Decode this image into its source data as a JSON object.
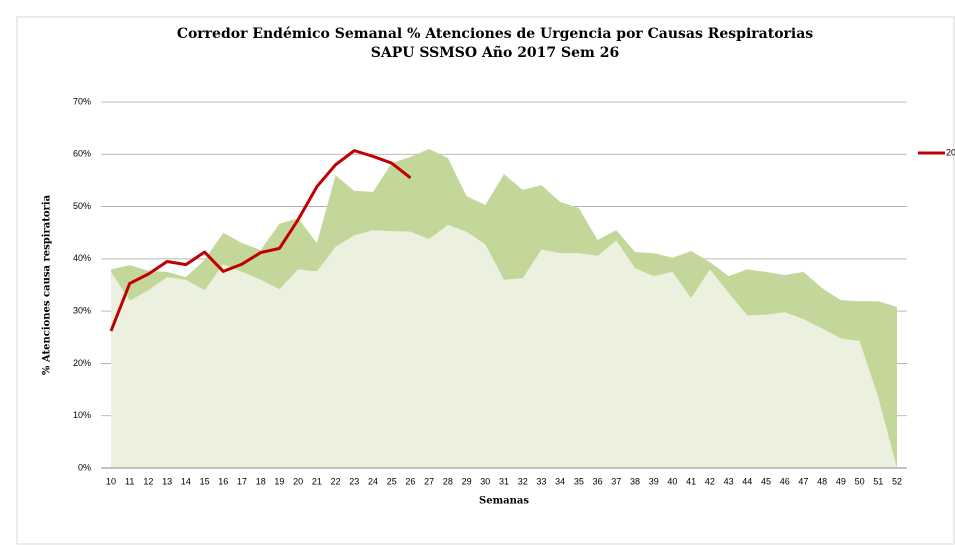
{
  "chart_data": {
    "type": "area",
    "title": "Corredor Endémico Semanal % Atenciones de Urgencia por Causas Respiratorias",
    "subtitle": "SAPU SSMSO Año 2017  Sem 26",
    "x_label": "Semanas",
    "y_label": "% Atenciones causa respiratoria",
    "categories": [
      "10",
      "11",
      "12",
      "13",
      "14",
      "15",
      "16",
      "17",
      "18",
      "19",
      "20",
      "21",
      "22",
      "23",
      "24",
      "25",
      "26",
      "27",
      "28",
      "29",
      "30",
      "31",
      "32",
      "33",
      "34",
      "35",
      "36",
      "37",
      "38",
      "39",
      "40",
      "41",
      "42",
      "43",
      "44",
      "45",
      "46",
      "47",
      "48",
      "49",
      "50",
      "51",
      "52"
    ],
    "series": [
      {
        "color": "#c4d79b",
        "values": [
          38,
          38.8,
          37.7,
          37.5,
          36.5,
          39.8,
          45,
          43,
          41.7,
          46.7,
          47.8,
          43,
          56,
          53,
          52.8,
          58.3,
          59.5,
          61,
          59.3,
          52,
          50.3,
          56.2,
          53.2,
          54.1,
          50.9,
          49.7,
          43.6,
          45.5,
          41.3,
          41.1,
          40.2,
          41.5,
          39.4,
          36.7,
          38,
          37.5,
          36.9,
          37.5,
          34.4,
          32.1,
          31.9,
          31.9,
          30.8
        ]
      },
      {
        "color": "#ebf1de",
        "values": [
          37.5,
          32,
          34,
          36.5,
          36,
          34,
          39,
          37.5,
          36,
          34.2,
          38,
          37.6,
          42.3,
          44.5,
          45.5,
          45.3,
          45.2,
          43.8,
          46.5,
          45.2,
          42.8,
          36,
          36.3,
          41.8,
          41.1,
          41.1,
          40.6,
          43.5,
          38.2,
          36.7,
          37.5,
          32.5,
          38,
          33.5,
          29.2,
          29.3,
          29.8,
          28.5,
          26.7,
          24.8,
          24.3,
          13.5,
          0
        ]
      },
      {
        "name": "20",
        "type": "line",
        "color": "#c00000",
        "values": [
          26.2,
          35.3,
          37.1,
          39.5,
          38.9,
          41.3,
          37.6,
          39,
          41.2,
          42,
          47.5,
          53.8,
          58,
          60.7,
          59.6,
          58.3,
          55.5,
          null,
          null,
          null,
          null,
          null,
          null,
          null,
          null,
          null,
          null,
          null,
          null,
          null,
          null,
          null,
          null,
          null,
          null,
          null,
          null,
          null,
          null,
          null,
          null,
          null,
          null
        ]
      }
    ],
    "ylim": [
      0,
      70
    ],
    "yticks": [
      {
        "value": 0,
        "label": "0%"
      },
      {
        "value": 10,
        "label": "10%"
      },
      {
        "value": 20,
        "label": "20%"
      },
      {
        "value": 30,
        "label": "30%"
      },
      {
        "value": 40,
        "label": "40%"
      },
      {
        "value": 50,
        "label": "50%"
      },
      {
        "value": 60,
        "label": "60%"
      },
      {
        "value": 70,
        "label": "70%"
      }
    ],
    "grid": true,
    "legend": "right"
  }
}
